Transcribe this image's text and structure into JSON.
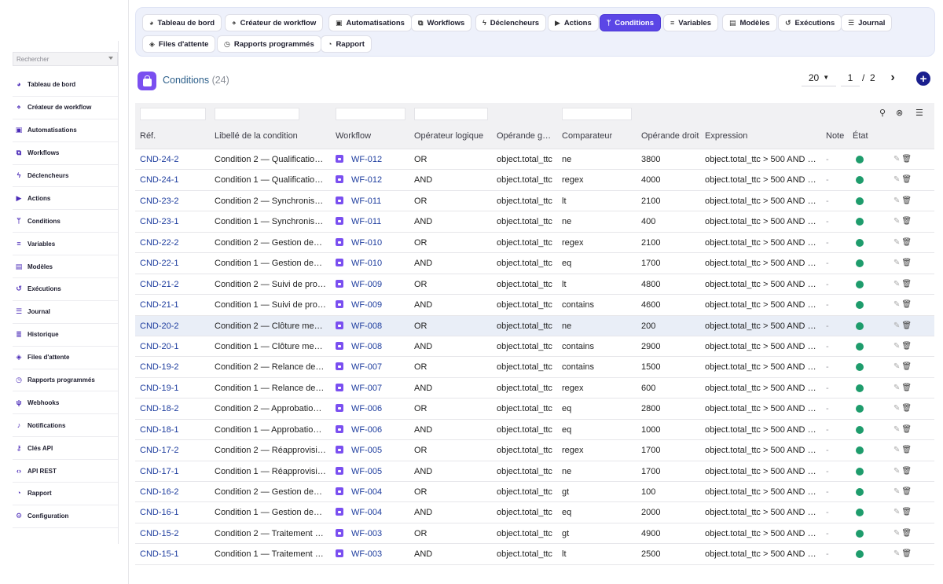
{
  "sidebar": {
    "search_placeholder": "Rechercher",
    "items": [
      {
        "label": "Tableau de bord",
        "icon": "dashboard-icon",
        "glyph": "◕"
      },
      {
        "label": "Créateur de workflow",
        "icon": "workflow-builder-icon",
        "glyph": "⋄"
      },
      {
        "label": "Automatisations",
        "icon": "robot-icon",
        "glyph": "▣"
      },
      {
        "label": "Workflows",
        "icon": "sitemap-icon",
        "glyph": "⧉"
      },
      {
        "label": "Déclencheurs",
        "icon": "bolt-icon",
        "glyph": "ϟ"
      },
      {
        "label": "Actions",
        "icon": "play-icon",
        "glyph": "▶"
      },
      {
        "label": "Conditions",
        "icon": "branch-icon",
        "glyph": "ᛘ"
      },
      {
        "label": "Variables",
        "icon": "sliders-icon",
        "glyph": "≡"
      },
      {
        "label": "Modèles",
        "icon": "template-icon",
        "glyph": "▤"
      },
      {
        "label": "Exécutions",
        "icon": "history-icon",
        "glyph": "↺"
      },
      {
        "label": "Journal",
        "icon": "list-icon",
        "glyph": "☰"
      },
      {
        "label": "Historique",
        "icon": "lines-icon",
        "glyph": "≣"
      },
      {
        "label": "Files d'attente",
        "icon": "layers-icon",
        "glyph": "◈"
      },
      {
        "label": "Rapports programmés",
        "icon": "clock-icon",
        "glyph": "◷"
      },
      {
        "label": "Webhooks",
        "icon": "webhook-icon",
        "glyph": "ψ"
      },
      {
        "label": "Notifications",
        "icon": "bell-icon",
        "glyph": "♪"
      },
      {
        "label": "Clés API",
        "icon": "key-icon",
        "glyph": "⚷"
      },
      {
        "label": "API REST",
        "icon": "code-icon",
        "glyph": "‹›"
      },
      {
        "label": "Rapport",
        "icon": "pie-chart-icon",
        "glyph": "◔"
      },
      {
        "label": "Configuration",
        "icon": "gear-icon",
        "glyph": "⚙"
      }
    ]
  },
  "toolbar": {
    "buttons": [
      {
        "label": "Tableau de bord",
        "icon": "dashboard-icon",
        "glyph": "◕",
        "active": false
      },
      {
        "label": "Créateur de workflow",
        "icon": "workflow-builder-icon",
        "glyph": "⋄",
        "active": false
      },
      {
        "label": "Automatisations",
        "icon": "robot-icon",
        "glyph": "▣",
        "active": false
      },
      {
        "label": "Workflows",
        "icon": "sitemap-icon",
        "glyph": "⧉",
        "active": false
      },
      {
        "label": "Déclencheurs",
        "icon": "bolt-icon",
        "glyph": "ϟ",
        "active": false
      },
      {
        "label": "Actions",
        "icon": "play-icon",
        "glyph": "▶",
        "active": false
      },
      {
        "label": "Conditions",
        "icon": "branch-icon",
        "glyph": "ᛘ",
        "active": true
      },
      {
        "label": "Variables",
        "icon": "sliders-icon",
        "glyph": "≡",
        "active": false
      },
      {
        "label": "Modèles",
        "icon": "template-icon",
        "glyph": "▤",
        "active": false
      },
      {
        "label": "Exécutions",
        "icon": "history-icon",
        "glyph": "↺",
        "active": false
      },
      {
        "label": "Journal",
        "icon": "list-icon",
        "glyph": "☰",
        "active": false
      },
      {
        "label": "Files d'attente",
        "icon": "layers-icon",
        "glyph": "◈",
        "active": false
      },
      {
        "label": "Rapports programmés",
        "icon": "clock-icon",
        "glyph": "◷",
        "active": false
      },
      {
        "label": "Rapport",
        "icon": "pie-chart-icon",
        "glyph": "◔",
        "active": false
      }
    ]
  },
  "header": {
    "title": "Conditions",
    "count": "(24)",
    "per_page": "20",
    "page": "1",
    "page_sep": "/",
    "total_pages": "2"
  },
  "table": {
    "columns": [
      "Réf.",
      "Libellé de la condition",
      "Workflow",
      "Opérateur logique",
      "Opérande g…",
      "Comparateur",
      "Opérande droit",
      "Expression",
      "Note",
      "État"
    ],
    "rows": [
      {
        "ref": "CND-24-2",
        "label": "Condition 2 — Qualification …",
        "workflow": "WF-012",
        "op": "OR",
        "left": "object.total_ttc",
        "cmp": "ne",
        "right": "3800",
        "expr": "object.total_ttc > 500 AND o…",
        "note": "-",
        "state": "active"
      },
      {
        "ref": "CND-24-1",
        "label": "Condition 1 — Qualification …",
        "workflow": "WF-012",
        "op": "AND",
        "left": "object.total_ttc",
        "cmp": "regex",
        "right": "4000",
        "expr": "object.total_ttc > 500 AND o…",
        "note": "-",
        "state": "active"
      },
      {
        "ref": "CND-23-2",
        "label": "Condition 2 — Synchronisat…",
        "workflow": "WF-011",
        "op": "OR",
        "left": "object.total_ttc",
        "cmp": "lt",
        "right": "2100",
        "expr": "object.total_ttc > 500 AND o…",
        "note": "-",
        "state": "active"
      },
      {
        "ref": "CND-23-1",
        "label": "Condition 1 — Synchronisat…",
        "workflow": "WF-011",
        "op": "AND",
        "left": "object.total_ttc",
        "cmp": "ne",
        "right": "400",
        "expr": "object.total_ttc > 500 AND o…",
        "note": "-",
        "state": "active"
      },
      {
        "ref": "CND-22-2",
        "label": "Condition 2 — Gestion des …",
        "workflow": "WF-010",
        "op": "OR",
        "left": "object.total_ttc",
        "cmp": "regex",
        "right": "2100",
        "expr": "object.total_ttc > 500 AND o…",
        "note": "-",
        "state": "active"
      },
      {
        "ref": "CND-22-1",
        "label": "Condition 1 — Gestion des …",
        "workflow": "WF-010",
        "op": "AND",
        "left": "object.total_ttc",
        "cmp": "eq",
        "right": "1700",
        "expr": "object.total_ttc > 500 AND o…",
        "note": "-",
        "state": "active"
      },
      {
        "ref": "CND-21-2",
        "label": "Condition 2 — Suivi de proj…",
        "workflow": "WF-009",
        "op": "OR",
        "left": "object.total_ttc",
        "cmp": "lt",
        "right": "4800",
        "expr": "object.total_ttc > 500 AND o…",
        "note": "-",
        "state": "active"
      },
      {
        "ref": "CND-21-1",
        "label": "Condition 1 — Suivi de proj…",
        "workflow": "WF-009",
        "op": "AND",
        "left": "object.total_ttc",
        "cmp": "contains",
        "right": "4600",
        "expr": "object.total_ttc > 500 AND o…",
        "note": "-",
        "state": "active"
      },
      {
        "ref": "CND-20-2",
        "label": "Condition 2 — Clôture mens…",
        "workflow": "WF-008",
        "op": "OR",
        "left": "object.total_ttc",
        "cmp": "ne",
        "right": "200",
        "expr": "object.total_ttc > 500 AND o…",
        "note": "-",
        "state": "active",
        "highlight": true
      },
      {
        "ref": "CND-20-1",
        "label": "Condition 1 — Clôture mens…",
        "workflow": "WF-008",
        "op": "AND",
        "left": "object.total_ttc",
        "cmp": "contains",
        "right": "2900",
        "expr": "object.total_ttc > 500 AND o…",
        "note": "-",
        "state": "active"
      },
      {
        "ref": "CND-19-2",
        "label": "Condition 2 — Relance des …",
        "workflow": "WF-007",
        "op": "OR",
        "left": "object.total_ttc",
        "cmp": "contains",
        "right": "1500",
        "expr": "object.total_ttc > 500 AND o…",
        "note": "-",
        "state": "active"
      },
      {
        "ref": "CND-19-1",
        "label": "Condition 1 — Relance des …",
        "workflow": "WF-007",
        "op": "AND",
        "left": "object.total_ttc",
        "cmp": "regex",
        "right": "600",
        "expr": "object.total_ttc > 500 AND o…",
        "note": "-",
        "state": "active"
      },
      {
        "ref": "CND-18-2",
        "label": "Condition 2 — Approbation …",
        "workflow": "WF-006",
        "op": "OR",
        "left": "object.total_ttc",
        "cmp": "eq",
        "right": "2800",
        "expr": "object.total_ttc > 500 AND o…",
        "note": "-",
        "state": "active"
      },
      {
        "ref": "CND-18-1",
        "label": "Condition 1 — Approbation …",
        "workflow": "WF-006",
        "op": "AND",
        "left": "object.total_ttc",
        "cmp": "eq",
        "right": "1000",
        "expr": "object.total_ttc > 500 AND o…",
        "note": "-",
        "state": "active"
      },
      {
        "ref": "CND-17-2",
        "label": "Condition 2 — Réapprovisio…",
        "workflow": "WF-005",
        "op": "OR",
        "left": "object.total_ttc",
        "cmp": "regex",
        "right": "1700",
        "expr": "object.total_ttc > 500 AND o…",
        "note": "-",
        "state": "active"
      },
      {
        "ref": "CND-17-1",
        "label": "Condition 1 — Réapprovisio…",
        "workflow": "WF-005",
        "op": "AND",
        "left": "object.total_ttc",
        "cmp": "ne",
        "right": "1700",
        "expr": "object.total_ttc > 500 AND o…",
        "note": "-",
        "state": "active"
      },
      {
        "ref": "CND-16-2",
        "label": "Condition 2 — Gestion des t…",
        "workflow": "WF-004",
        "op": "OR",
        "left": "object.total_ttc",
        "cmp": "gt",
        "right": "100",
        "expr": "object.total_ttc > 500 AND o…",
        "note": "-",
        "state": "active"
      },
      {
        "ref": "CND-16-1",
        "label": "Condition 1 — Gestion des t…",
        "workflow": "WF-004",
        "op": "AND",
        "left": "object.total_ttc",
        "cmp": "eq",
        "right": "2000",
        "expr": "object.total_ttc > 500 AND o…",
        "note": "-",
        "state": "active"
      },
      {
        "ref": "CND-15-2",
        "label": "Condition 2 — Traitement d…",
        "workflow": "WF-003",
        "op": "OR",
        "left": "object.total_ttc",
        "cmp": "gt",
        "right": "4900",
        "expr": "object.total_ttc > 500 AND o…",
        "note": "-",
        "state": "active"
      },
      {
        "ref": "CND-15-1",
        "label": "Condition 1 — Traitement d…",
        "workflow": "WF-003",
        "op": "AND",
        "left": "object.total_ttc",
        "cmp": "lt",
        "right": "2500",
        "expr": "object.total_ttc > 500 AND o…",
        "note": "-",
        "state": "active"
      }
    ]
  },
  "colors": {
    "accent": "#5b46e6",
    "status_active": "#1e9c6c",
    "link": "#1d3c9e"
  }
}
